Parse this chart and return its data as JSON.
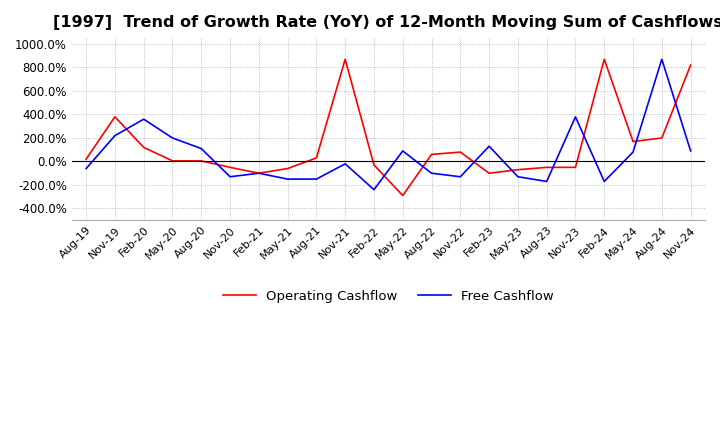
{
  "title": "[1997]  Trend of Growth Rate (YoY) of 12-Month Moving Sum of Cashflows",
  "title_fontsize": 11.5,
  "ylim": [
    -500,
    1050
  ],
  "yticks": [
    -400,
    -200,
    0,
    200,
    400,
    600,
    800,
    1000
  ],
  "ytick_labels": [
    "-400.0%",
    "-200.0%",
    "0.0%",
    "200.0%",
    "400.0%",
    "600.0%",
    "800.0%",
    "1000.0%"
  ],
  "background_color": "#ffffff",
  "grid_color": "#aaaaaa",
  "operating_color": "#ff0000",
  "free_color": "#0000ff",
  "legend_labels": [
    "Operating Cashflow",
    "Free Cashflow"
  ],
  "x_labels": [
    "Aug-19",
    "Nov-19",
    "Feb-20",
    "May-20",
    "Aug-20",
    "Nov-20",
    "Feb-21",
    "May-21",
    "Aug-21",
    "Nov-21",
    "Feb-22",
    "May-22",
    "Aug-22",
    "Nov-22",
    "Feb-23",
    "May-23",
    "Aug-23",
    "Nov-23",
    "Feb-24",
    "May-24",
    "Aug-24",
    "Nov-24"
  ],
  "operating_cashflow": [
    20,
    380,
    120,
    5,
    5,
    -50,
    -100,
    -60,
    30,
    870,
    -30,
    -290,
    60,
    80,
    -100,
    -70,
    -50,
    -50,
    870,
    170,
    200,
    820
  ],
  "free_cashflow": [
    -60,
    220,
    360,
    200,
    110,
    -130,
    -100,
    -150,
    -150,
    -20,
    -240,
    90,
    -100,
    -130,
    130,
    -130,
    -170,
    380,
    -170,
    80,
    870,
    90
  ]
}
